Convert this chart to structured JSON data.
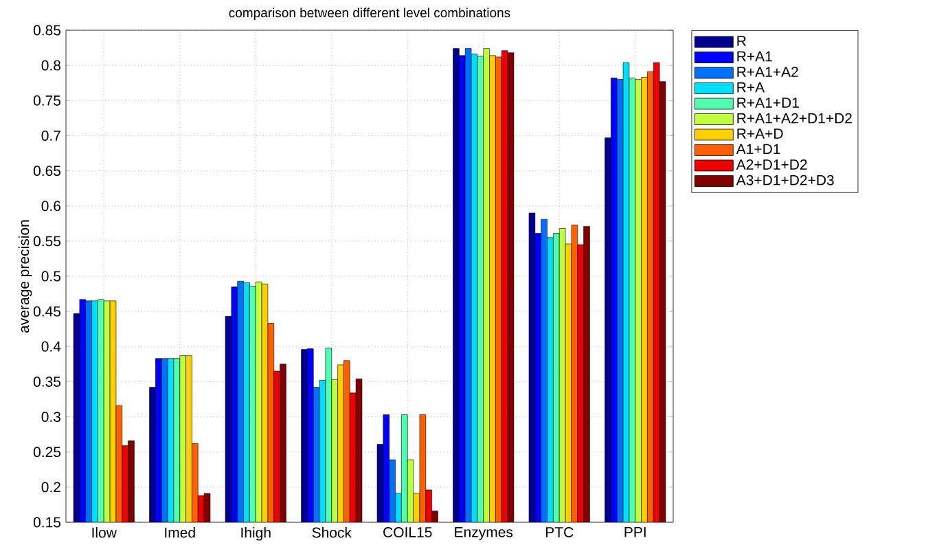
{
  "chart_data": {
    "type": "bar",
    "title": "comparison between different level combinations",
    "ylabel": "average precision",
    "categories": [
      "Ilow",
      "Imed",
      "Ihigh",
      "Shock",
      "COIL15",
      "Enzymes",
      "PTC",
      "PPI"
    ],
    "series": [
      {
        "name": "R",
        "color": "#00008f",
        "values": [
          0.447,
          0.342,
          0.443,
          0.396,
          0.261,
          0.824,
          0.59,
          0.697
        ]
      },
      {
        "name": "R+A1",
        "color": "#0000ff",
        "values": [
          0.467,
          0.383,
          0.485,
          0.397,
          0.303,
          0.814,
          0.561,
          0.782
        ]
      },
      {
        "name": "R+A1+A2",
        "color": "#0070ff",
        "values": [
          0.465,
          0.383,
          0.493,
          0.342,
          0.239,
          0.824,
          0.581,
          0.78
        ]
      },
      {
        "name": "R+A",
        "color": "#00dfff",
        "values": [
          0.465,
          0.383,
          0.491,
          0.352,
          0.191,
          0.816,
          0.555,
          0.804
        ]
      },
      {
        "name": "R+A1+D1",
        "color": "#50ffaf",
        "values": [
          0.467,
          0.383,
          0.486,
          0.398,
          0.303,
          0.813,
          0.561,
          0.782
        ]
      },
      {
        "name": "R+A1+A2+D1+D2",
        "color": "#bfff40",
        "values": [
          0.465,
          0.387,
          0.492,
          0.353,
          0.239,
          0.824,
          0.568,
          0.78
        ]
      },
      {
        "name": "R+A+D",
        "color": "#ffcf00",
        "values": [
          0.465,
          0.387,
          0.489,
          0.374,
          0.191,
          0.814,
          0.546,
          0.783
        ]
      },
      {
        "name": "A1+D1",
        "color": "#ff6000",
        "values": [
          0.316,
          0.262,
          0.433,
          0.38,
          0.303,
          0.812,
          0.573,
          0.791
        ]
      },
      {
        "name": "A2+D1+D2",
        "color": "#ef0000",
        "values": [
          0.259,
          0.188,
          0.365,
          0.334,
          0.196,
          0.821,
          0.545,
          0.804
        ]
      },
      {
        "name": "A3+D1+D2+D3",
        "color": "#800000",
        "values": [
          0.266,
          0.191,
          0.375,
          0.354,
          0.166,
          0.818,
          0.571,
          0.777
        ]
      }
    ],
    "ylim": [
      0.15,
      0.85
    ],
    "yticks": [
      0.15,
      0.2,
      0.25,
      0.3,
      0.35,
      0.4,
      0.45,
      0.5,
      0.55,
      0.6,
      0.65,
      0.7,
      0.75,
      0.8,
      0.85
    ],
    "grid": true,
    "legend": "top right"
  }
}
